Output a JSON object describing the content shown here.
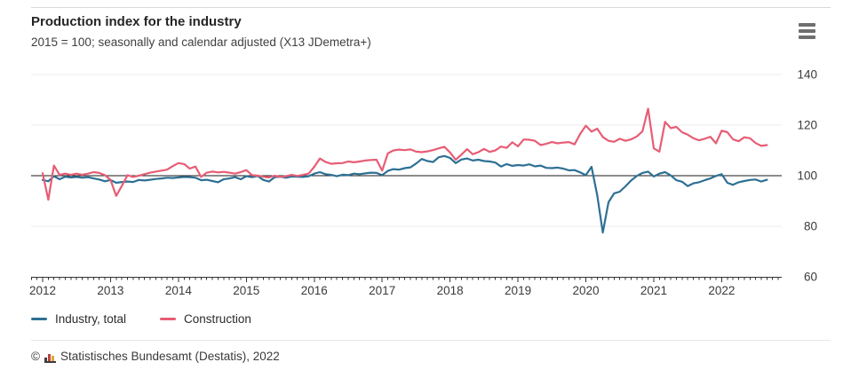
{
  "header": {
    "menu_icon": "hamburger-menu-icon"
  },
  "chart_data": {
    "type": "line",
    "title": "Production index for the industry",
    "subtitle": "2015 = 100; seasonally and calendar adjusted (X13 JDemetra+)",
    "frequency": "monthly",
    "x_start": "2012-01",
    "x_end": "2022-09",
    "x_ticks": [
      "2012",
      "2013",
      "2014",
      "2015",
      "2016",
      "2017",
      "2018",
      "2019",
      "2020",
      "2021",
      "2022"
    ],
    "y_ticks": [
      140,
      120,
      100,
      80,
      60
    ],
    "reference_line": 100,
    "ylim": [
      60,
      145
    ],
    "grid": "horizontal-light",
    "legend_position": "bottom-left",
    "series": [
      {
        "name": "Industry, total",
        "color": "#2e7094",
        "values": [
          98.3,
          97.8,
          99.8,
          98.6,
          99.6,
          99.3,
          99.5,
          99.2,
          99.4,
          98.9,
          98.5,
          97.8,
          98.3,
          97.2,
          97.5,
          97.7,
          97.5,
          98.3,
          98.1,
          98.4,
          98.7,
          98.9,
          99.2,
          99.1,
          99.3,
          99.5,
          99.4,
          99.2,
          98.2,
          98.4,
          97.9,
          97.4,
          98.6,
          98.9,
          99.4,
          98.6,
          99.8,
          99.4,
          99.9,
          98.3,
          97.7,
          99.4,
          99.6,
          99.2,
          99.7,
          99.6,
          99.5,
          99.8,
          100.8,
          101.4,
          100.6,
          100.3,
          99.8,
          100.4,
          100.2,
          100.8,
          100.6,
          100.9,
          101.2,
          101.1,
          100.2,
          101.9,
          102.6,
          102.4,
          103.0,
          103.3,
          104.8,
          106.6,
          105.8,
          105.4,
          107.3,
          107.8,
          107.0,
          105.0,
          106.4,
          106.8,
          106.0,
          106.3,
          105.8,
          105.6,
          105.2,
          103.6,
          104.6,
          103.9,
          104.2,
          104.0,
          104.5,
          103.7,
          104.0,
          103.1,
          103.0,
          103.2,
          102.8,
          102.1,
          102.2,
          101.3,
          100.2,
          103.5,
          92.3,
          77.5,
          89.5,
          93.0,
          93.7,
          95.8,
          98.1,
          99.9,
          101.1,
          101.6,
          99.7,
          100.8,
          101.4,
          100.1,
          98.2,
          97.6,
          95.9,
          97.0,
          97.4,
          98.2,
          98.9,
          99.9,
          100.6,
          97.2,
          96.4,
          97.4,
          97.9,
          98.3,
          98.5,
          97.7,
          98.4
        ]
      },
      {
        "name": "Construction",
        "color": "#e75d74",
        "values": [
          101.0,
          90.5,
          104.0,
          100.3,
          100.8,
          100.3,
          100.8,
          100.4,
          100.8,
          101.4,
          101.1,
          100.2,
          98.4,
          92.0,
          96.0,
          100.2,
          99.5,
          100.0,
          100.6,
          101.2,
          101.6,
          102.0,
          102.4,
          103.8,
          105.0,
          104.6,
          102.8,
          103.6,
          99.5,
          101.2,
          101.6,
          101.3,
          101.5,
          101.2,
          100.8,
          101.4,
          102.2,
          100.2,
          100.0,
          99.6,
          99.3,
          100.0,
          99.5,
          99.8,
          100.3,
          99.9,
          100.3,
          100.8,
          103.5,
          106.8,
          105.4,
          104.7,
          104.9,
          105.0,
          105.6,
          105.3,
          105.6,
          106.0,
          106.2,
          106.3,
          102.0,
          108.8,
          110.0,
          110.3,
          110.1,
          110.4,
          109.5,
          109.3,
          109.6,
          110.1,
          110.8,
          111.4,
          109.2,
          106.3,
          108.3,
          110.5,
          108.5,
          109.3,
          110.6,
          109.4,
          110.0,
          111.5,
          111.0,
          113.2,
          111.6,
          114.3,
          114.2,
          113.8,
          112.1,
          112.6,
          113.3,
          112.8,
          113.1,
          113.3,
          112.4,
          116.5,
          119.8,
          117.4,
          118.6,
          115.3,
          113.8,
          113.4,
          114.6,
          113.8,
          114.4,
          115.5,
          117.5,
          126.5,
          110.8,
          109.5,
          121.3,
          118.8,
          119.3,
          117.2,
          116.2,
          114.8,
          114.0,
          114.6,
          115.4,
          112.8,
          117.8,
          117.2,
          114.4,
          113.6,
          115.2,
          114.8,
          112.9,
          111.8,
          112.1
        ]
      }
    ]
  },
  "footer": {
    "copyright_symbol": "©",
    "logo_icon": "destatis-bar-chart-logo",
    "text": "Statistisches Bundesamt (Destatis), 2022"
  }
}
